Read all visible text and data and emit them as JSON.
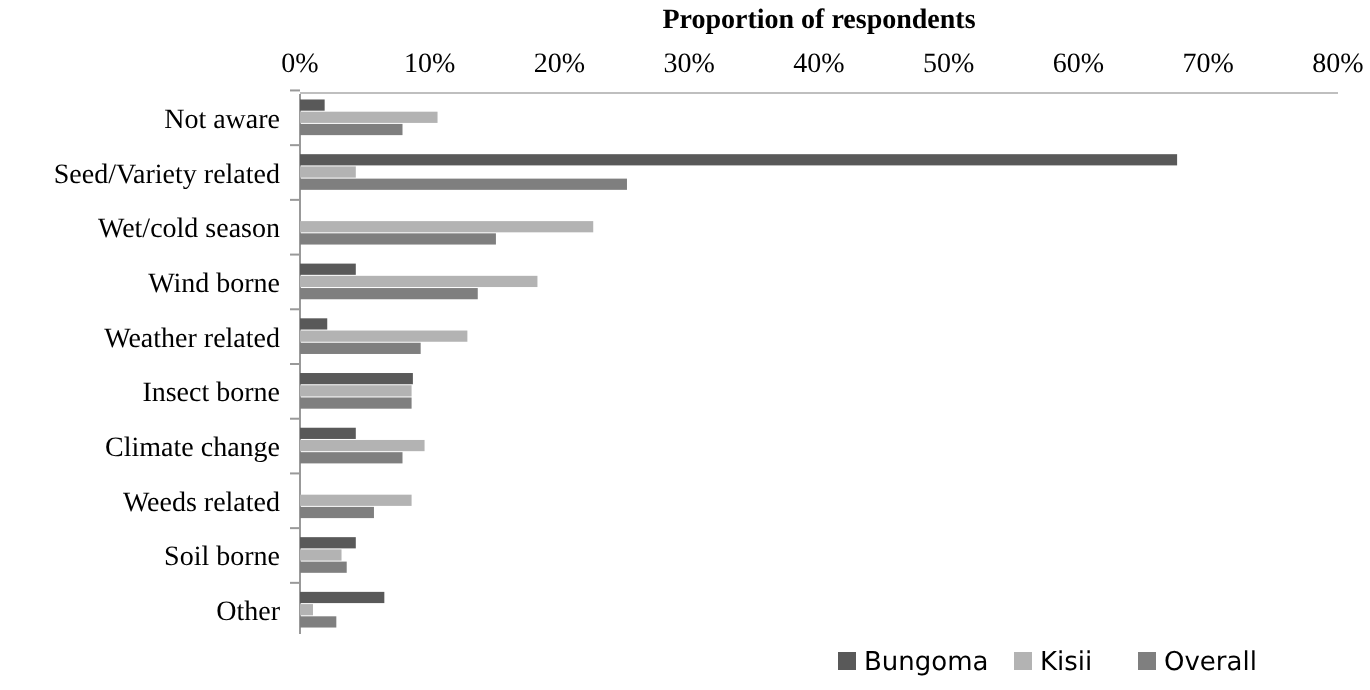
{
  "chart_data": {
    "type": "bar",
    "orientation": "horizontal",
    "xlabel": "Proportion of respondents",
    "categories": [
      "Not aware",
      "Seed/Variety related",
      "Wet/cold season",
      "Wind borne",
      "Weather related",
      "Insect borne",
      "Climate change",
      "Weeds related",
      "Soil borne",
      "Other"
    ],
    "series": [
      {
        "name": "Bungoma",
        "color": "#595959",
        "values": [
          1.9,
          67.6,
          0,
          4.3,
          2.1,
          8.7,
          4.3,
          0,
          4.3,
          6.5
        ]
      },
      {
        "name": "Kisii",
        "color": "#b3b3b3",
        "values": [
          10.6,
          4.3,
          22.6,
          18.3,
          12.9,
          8.6,
          9.6,
          8.6,
          3.2,
          1.0
        ]
      },
      {
        "name": "Overall",
        "color": "#7f7f7f",
        "values": [
          7.9,
          25.2,
          15.1,
          13.7,
          9.3,
          8.6,
          7.9,
          5.7,
          3.6,
          2.8
        ]
      }
    ],
    "xlim": [
      0,
      80
    ],
    "xticks": [
      {
        "value": 0,
        "label": "0%"
      },
      {
        "value": 10,
        "label": "10%"
      },
      {
        "value": 20,
        "label": "20%"
      },
      {
        "value": 30,
        "label": "30%"
      },
      {
        "value": 40,
        "label": "40%"
      },
      {
        "value": 50,
        "label": "50%"
      },
      {
        "value": 60,
        "label": "60%"
      },
      {
        "value": 70,
        "label": "70%"
      },
      {
        "value": 80,
        "label": "80%"
      }
    ],
    "grid": false,
    "legend": "bottom right"
  }
}
